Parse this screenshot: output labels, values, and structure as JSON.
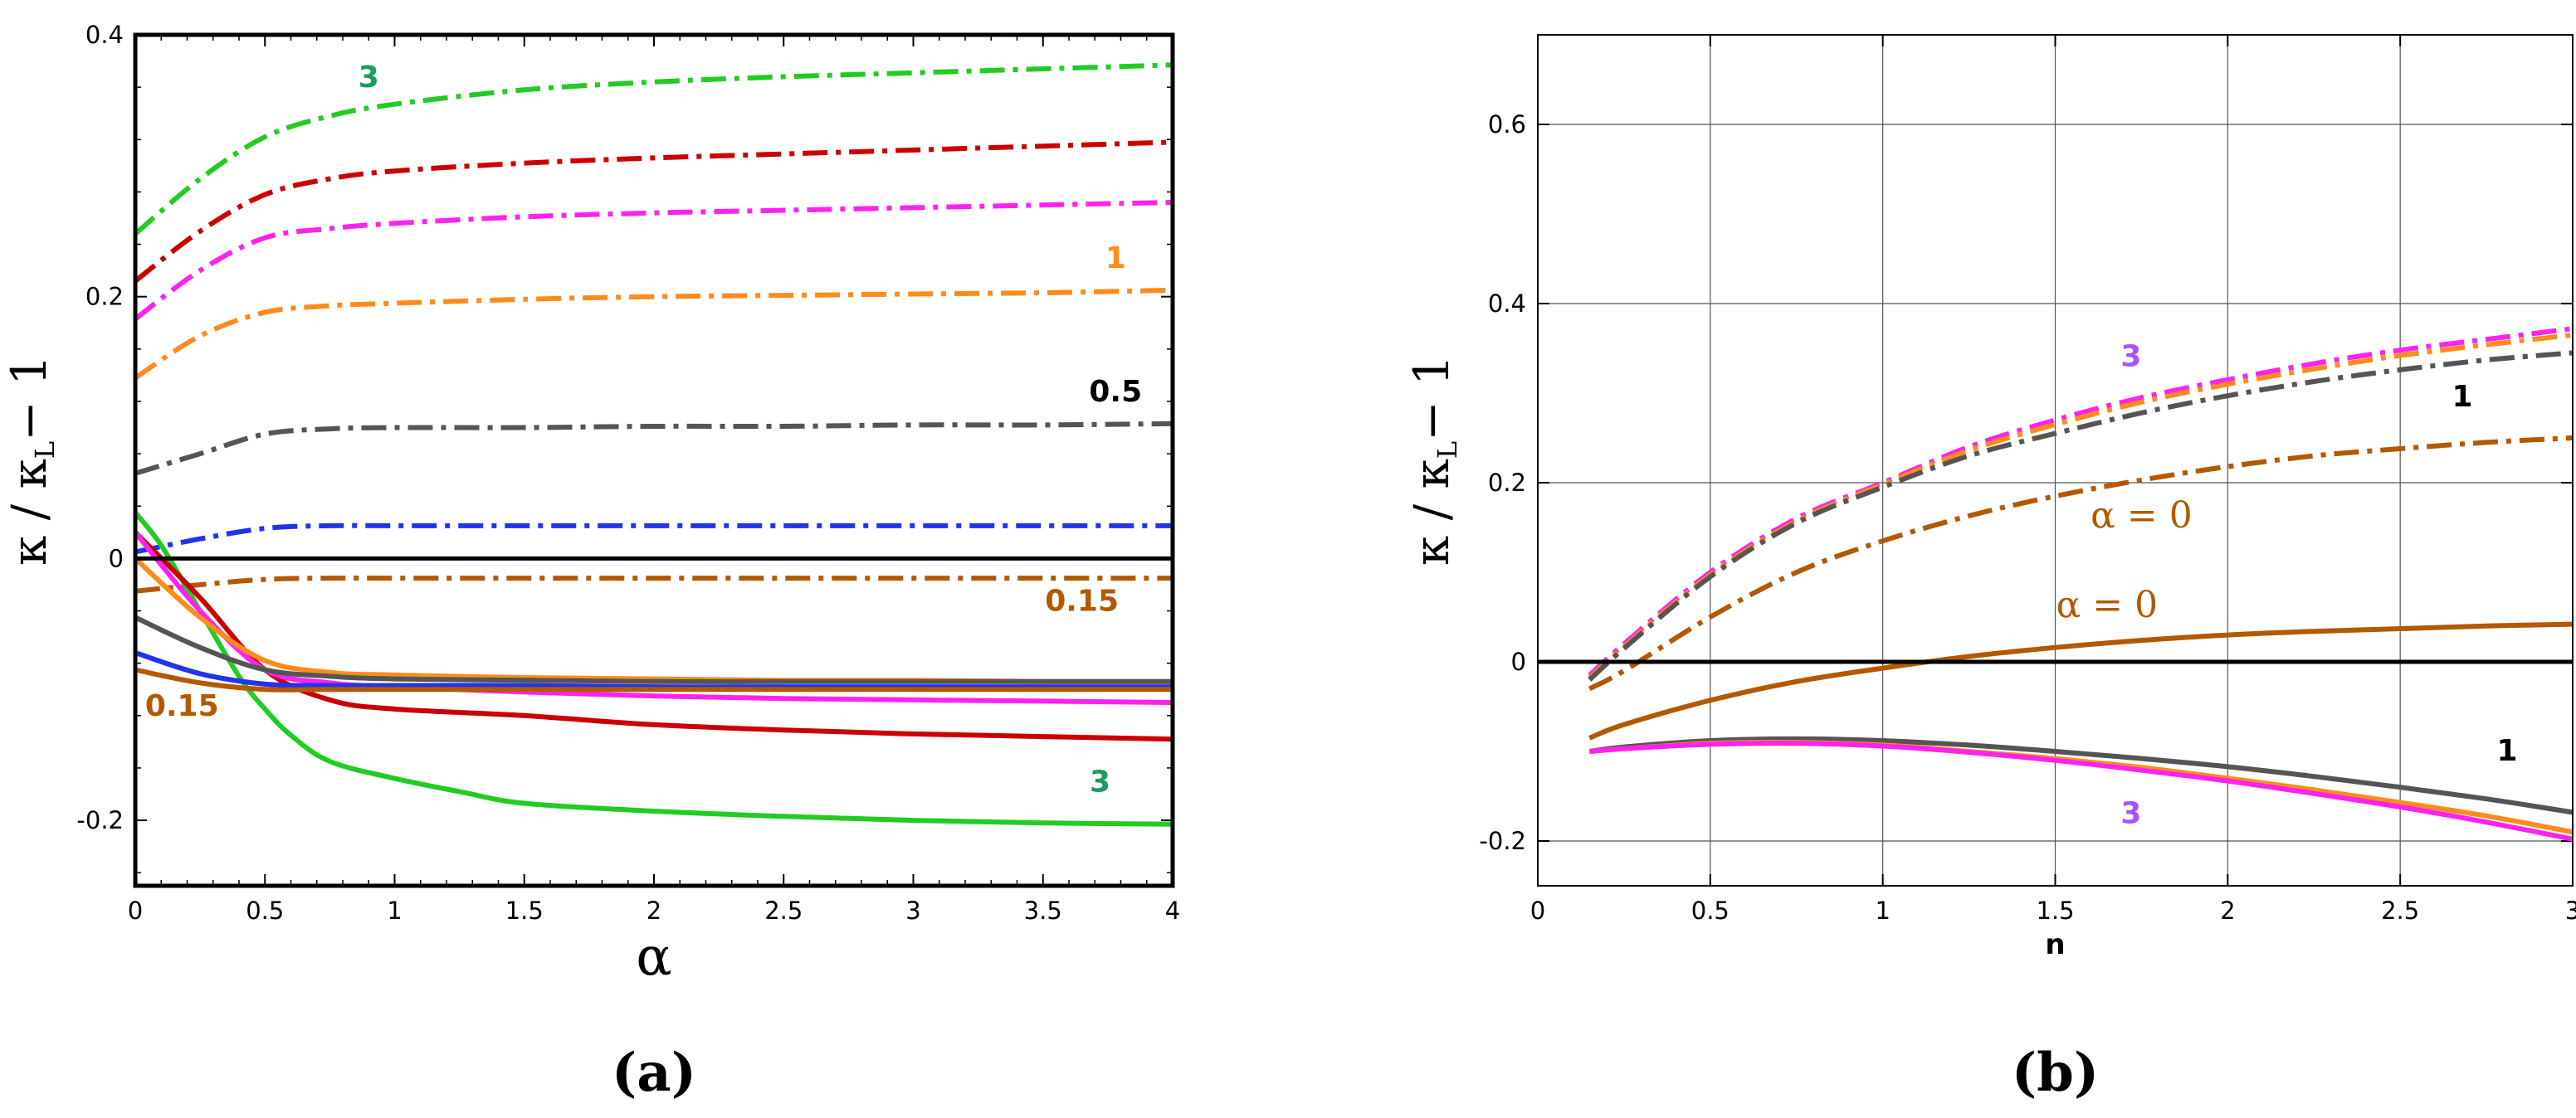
{
  "chart_data": [
    {
      "panel": "(a)",
      "type": "line",
      "xlabel": "α",
      "ylabel": "κ / κL − 1",
      "ylabel_parts": {
        "kappa": "κ",
        "slash": " / κ",
        "sub": "L",
        "tail": "− 1"
      },
      "xlim": [
        0,
        4
      ],
      "ylim": [
        -0.25,
        0.4
      ],
      "xticks": [
        0,
        0.5,
        1,
        1.5,
        2,
        2.5,
        3,
        3.5,
        4
      ],
      "xtick_labels": [
        "0",
        "0.5",
        "1",
        "1.5",
        "2",
        "2.5",
        "3",
        "3.5",
        "4"
      ],
      "yticks": [
        -0.2,
        0,
        0.2,
        0.4
      ],
      "ytick_labels": [
        "-0.2",
        "0",
        "0.2",
        "0.4"
      ],
      "grid": false,
      "zero_line": true,
      "series": [
        {
          "name": "dashdot n=3",
          "color": "#22cc22",
          "style": "dashdot",
          "x": [
            0,
            0.25,
            0.5,
            0.75,
            1,
            1.5,
            2,
            2.5,
            3,
            3.5,
            4
          ],
          "values": [
            0.248,
            0.29,
            0.322,
            0.338,
            0.347,
            0.358,
            0.364,
            0.368,
            0.371,
            0.374,
            0.377
          ]
        },
        {
          "name": "dashdot red",
          "color": "#cc0000",
          "style": "dashdot",
          "x": [
            0,
            0.25,
            0.5,
            0.75,
            1,
            1.5,
            2,
            2.5,
            3,
            3.5,
            4
          ],
          "values": [
            0.212,
            0.25,
            0.278,
            0.29,
            0.296,
            0.302,
            0.306,
            0.309,
            0.312,
            0.315,
            0.318
          ]
        },
        {
          "name": "dashdot magenta",
          "color": "#ff22ee",
          "style": "dashdot",
          "x": [
            0,
            0.25,
            0.5,
            0.75,
            1,
            1.5,
            2,
            2.5,
            3,
            3.5,
            4
          ],
          "values": [
            0.183,
            0.22,
            0.245,
            0.252,
            0.256,
            0.261,
            0.264,
            0.266,
            0.268,
            0.27,
            0.272
          ]
        },
        {
          "name": "dashdot n=1",
          "color": "#ff8c1a",
          "style": "dashdot",
          "x": [
            0,
            0.25,
            0.5,
            0.75,
            1,
            1.5,
            2,
            2.5,
            3,
            3.5,
            4
          ],
          "values": [
            0.138,
            0.17,
            0.188,
            0.193,
            0.195,
            0.198,
            0.2,
            0.201,
            0.202,
            0.203,
            0.205
          ]
        },
        {
          "name": "dashdot n=0.5",
          "color": "#555555",
          "style": "dashdot",
          "x": [
            0,
            0.25,
            0.5,
            0.75,
            1,
            1.5,
            2,
            2.5,
            3,
            3.5,
            4
          ],
          "values": [
            0.065,
            0.08,
            0.095,
            0.099,
            0.1,
            0.1,
            0.101,
            0.101,
            0.102,
            0.102,
            0.103
          ]
        },
        {
          "name": "dashdot blue",
          "color": "#2233ee",
          "style": "dashdot",
          "x": [
            0,
            0.25,
            0.5,
            0.75,
            1,
            1.5,
            2,
            2.5,
            3,
            3.5,
            4
          ],
          "values": [
            0.005,
            0.015,
            0.023,
            0.025,
            0.025,
            0.025,
            0.025,
            0.025,
            0.025,
            0.025,
            0.025
          ]
        },
        {
          "name": "dashdot n=0.15",
          "color": "#b35900",
          "style": "dashdot",
          "x": [
            0,
            0.25,
            0.5,
            0.75,
            1,
            1.5,
            2,
            2.5,
            3,
            3.5,
            4
          ],
          "values": [
            -0.025,
            -0.02,
            -0.016,
            -0.015,
            -0.015,
            -0.015,
            -0.015,
            -0.015,
            -0.015,
            -0.015,
            -0.015
          ]
        },
        {
          "name": "solid n=3",
          "color": "#22cc22",
          "style": "solid",
          "x": [
            0,
            0.1,
            0.25,
            0.4,
            0.5,
            0.6,
            0.75,
            1,
            1.25,
            1.5,
            2,
            2.5,
            3,
            3.5,
            4
          ],
          "values": [
            0.035,
            0.01,
            -0.04,
            -0.09,
            -0.115,
            -0.135,
            -0.155,
            -0.168,
            -0.178,
            -0.187,
            -0.193,
            -0.197,
            -0.2,
            -0.202,
            -0.203
          ]
        },
        {
          "name": "solid red",
          "color": "#cc0000",
          "style": "solid",
          "x": [
            0,
            0.25,
            0.5,
            0.75,
            1,
            1.5,
            2,
            2.5,
            3,
            3.5,
            4
          ],
          "values": [
            0.02,
            -0.03,
            -0.085,
            -0.108,
            -0.115,
            -0.12,
            -0.127,
            -0.131,
            -0.134,
            -0.136,
            -0.138
          ]
        },
        {
          "name": "solid magenta",
          "color": "#ff22ee",
          "style": "solid",
          "x": [
            0,
            0.25,
            0.5,
            0.75,
            1,
            1.5,
            2,
            2.5,
            3,
            3.5,
            4
          ],
          "values": [
            0.02,
            -0.04,
            -0.085,
            -0.095,
            -0.098,
            -0.102,
            -0.105,
            -0.107,
            -0.108,
            -0.109,
            -0.11
          ]
        },
        {
          "name": "solid orange",
          "color": "#ff8c1a",
          "style": "solid",
          "x": [
            0,
            0.25,
            0.5,
            0.75,
            1,
            1.5,
            2,
            2.5,
            3,
            3.5,
            4
          ],
          "values": [
            0.0,
            -0.045,
            -0.078,
            -0.087,
            -0.089,
            -0.091,
            -0.092,
            -0.093,
            -0.093,
            -0.094,
            -0.094
          ]
        },
        {
          "name": "solid gray",
          "color": "#555555",
          "style": "solid",
          "x": [
            0,
            0.25,
            0.5,
            0.75,
            1,
            1.5,
            2,
            2.5,
            3,
            3.5,
            4
          ],
          "values": [
            -0.045,
            -0.068,
            -0.085,
            -0.09,
            -0.092,
            -0.093,
            -0.094,
            -0.094,
            -0.094,
            -0.094,
            -0.094
          ]
        },
        {
          "name": "solid blue",
          "color": "#2233ee",
          "style": "solid",
          "x": [
            0,
            0.25,
            0.5,
            0.75,
            1,
            1.5,
            2,
            2.5,
            3,
            3.5,
            4
          ],
          "values": [
            -0.072,
            -0.088,
            -0.096,
            -0.097,
            -0.097,
            -0.097,
            -0.098,
            -0.098,
            -0.098,
            -0.098,
            -0.098
          ]
        },
        {
          "name": "solid brown",
          "color": "#b35900",
          "style": "solid",
          "x": [
            0,
            0.25,
            0.5,
            0.75,
            1,
            1.5,
            2,
            2.5,
            3,
            3.5,
            4
          ],
          "values": [
            -0.085,
            -0.095,
            -0.1,
            -0.1,
            -0.1,
            -0.1,
            -0.1,
            -0.1,
            -0.1,
            -0.1,
            -0.1
          ]
        }
      ],
      "annotations": [
        {
          "text": "3",
          "x": 0.9,
          "y": 0.36,
          "color": "#1a9e5c"
        },
        {
          "text": "1",
          "x": 3.78,
          "y": 0.222,
          "color": "#ff8c1a"
        },
        {
          "text": "0.5",
          "x": 3.78,
          "y": 0.12,
          "color": "#000000"
        },
        {
          "text": "0.15",
          "x": 3.65,
          "y": -0.04,
          "color": "#b35900"
        },
        {
          "text": "0.15",
          "x": 0.18,
          "y": -0.12,
          "color": "#b35900"
        },
        {
          "text": "3",
          "x": 3.72,
          "y": -0.178,
          "color": "#1a9e5c"
        }
      ]
    },
    {
      "panel": "(b)",
      "type": "line",
      "xlabel": "n",
      "ylabel": "κ / κL − 1",
      "ylabel_parts": {
        "kappa": "κ",
        "slash": " / κ",
        "sub": "L",
        "tail": "− 1"
      },
      "xlim": [
        0,
        3
      ],
      "ylim": [
        -0.25,
        0.7
      ],
      "xticks": [
        0,
        0.5,
        1,
        1.5,
        2,
        2.5,
        3
      ],
      "xtick_labels": [
        "0",
        "0.5",
        "1",
        "1.5",
        "2",
        "2.5",
        "3"
      ],
      "yticks": [
        -0.2,
        0,
        0.2,
        0.4,
        0.6
      ],
      "ytick_labels": [
        "-0.2",
        "0",
        "0.2",
        "0.4",
        "0.6"
      ],
      "grid": true,
      "zero_line": true,
      "series": [
        {
          "name": "dashdot α=3 magenta",
          "color": "#ff22ee",
          "style": "dashdot",
          "x": [
            0.15,
            0.25,
            0.5,
            0.75,
            1,
            1.25,
            1.5,
            1.75,
            2,
            2.25,
            2.5,
            2.75,
            3
          ],
          "values": [
            -0.015,
            0.02,
            0.1,
            0.16,
            0.2,
            0.24,
            0.27,
            0.295,
            0.315,
            0.333,
            0.348,
            0.36,
            0.372
          ]
        },
        {
          "name": "dashdot α=3 orange",
          "color": "#ff8c1a",
          "style": "dashdot",
          "x": [
            0.15,
            0.25,
            0.5,
            0.75,
            1,
            1.25,
            1.5,
            1.75,
            2,
            2.25,
            2.5,
            2.75,
            3
          ],
          "values": [
            -0.018,
            0.017,
            0.097,
            0.157,
            0.198,
            0.236,
            0.265,
            0.29,
            0.31,
            0.327,
            0.342,
            0.354,
            0.365
          ]
        },
        {
          "name": "dashdot α=1 gray",
          "color": "#555555",
          "style": "dashdot",
          "x": [
            0.15,
            0.25,
            0.5,
            0.75,
            1,
            1.25,
            1.5,
            1.75,
            2,
            2.25,
            2.5,
            2.75,
            3
          ],
          "values": [
            -0.02,
            0.015,
            0.095,
            0.155,
            0.195,
            0.23,
            0.255,
            0.278,
            0.297,
            0.313,
            0.326,
            0.337,
            0.345
          ]
        },
        {
          "name": "dashdot α=0",
          "color": "#b35900",
          "style": "dashdot",
          "x": [
            0.15,
            0.25,
            0.5,
            0.75,
            1,
            1.25,
            1.5,
            1.75,
            2,
            2.25,
            2.5,
            2.75,
            3
          ],
          "values": [
            -0.03,
            -0.01,
            0.05,
            0.1,
            0.135,
            0.163,
            0.185,
            0.203,
            0.218,
            0.23,
            0.238,
            0.245,
            0.25
          ]
        },
        {
          "name": "solid α=0",
          "color": "#b35900",
          "style": "solid",
          "x": [
            0.15,
            0.25,
            0.5,
            0.75,
            1,
            1.25,
            1.5,
            1.75,
            2,
            2.25,
            2.5,
            2.75,
            3
          ],
          "values": [
            -0.085,
            -0.07,
            -0.043,
            -0.022,
            -0.007,
            0.006,
            0.016,
            0.024,
            0.03,
            0.034,
            0.037,
            0.04,
            0.042
          ]
        },
        {
          "name": "solid α=1 gray",
          "color": "#555555",
          "style": "solid",
          "x": [
            0.15,
            0.25,
            0.5,
            0.75,
            1,
            1.25,
            1.5,
            1.75,
            2,
            2.25,
            2.5,
            2.75,
            3
          ],
          "values": [
            -0.1,
            -0.095,
            -0.088,
            -0.086,
            -0.088,
            -0.093,
            -0.1,
            -0.108,
            -0.117,
            -0.128,
            -0.14,
            -0.153,
            -0.168
          ]
        },
        {
          "name": "solid α=3 orange",
          "color": "#ff8c1a",
          "style": "solid",
          "x": [
            0.15,
            0.25,
            0.5,
            0.75,
            1,
            1.25,
            1.5,
            1.75,
            2,
            2.25,
            2.5,
            2.75,
            3
          ],
          "values": [
            -0.1,
            -0.097,
            -0.091,
            -0.09,
            -0.093,
            -0.1,
            -0.108,
            -0.118,
            -0.13,
            -0.143,
            -0.157,
            -0.172,
            -0.19
          ]
        },
        {
          "name": "solid α=3 magenta",
          "color": "#ff22ee",
          "style": "solid",
          "x": [
            0.15,
            0.25,
            0.5,
            0.75,
            1,
            1.25,
            1.5,
            1.75,
            2,
            2.25,
            2.5,
            2.75,
            3
          ],
          "values": [
            -0.1,
            -0.097,
            -0.092,
            -0.091,
            -0.094,
            -0.101,
            -0.11,
            -0.121,
            -0.133,
            -0.147,
            -0.162,
            -0.179,
            -0.198
          ]
        }
      ],
      "annotations": [
        {
          "text": "3",
          "x": 1.72,
          "y": 0.33,
          "color": "#a855f7",
          "font": "sans"
        },
        {
          "text": "1",
          "x": 2.68,
          "y": 0.285,
          "color": "#000000",
          "font": "sans"
        },
        {
          "text": "α = 0",
          "x": 1.75,
          "y": 0.15,
          "color": "#b35900",
          "font": "serif"
        },
        {
          "text": "α = 0",
          "x": 1.65,
          "y": 0.05,
          "color": "#b35900",
          "font": "serif"
        },
        {
          "text": "1",
          "x": 2.81,
          "y": -0.11,
          "color": "#000000",
          "font": "sans"
        },
        {
          "text": "3",
          "x": 1.72,
          "y": -0.18,
          "color": "#a855f7",
          "font": "sans"
        }
      ]
    }
  ]
}
